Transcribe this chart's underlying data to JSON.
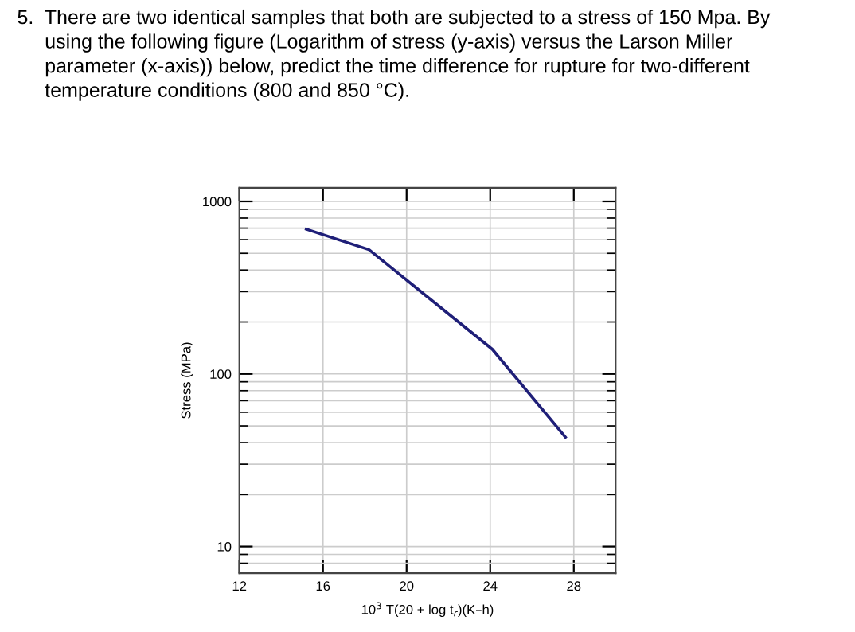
{
  "chart_data": {
    "type": "line",
    "title": "5.  There are two identical samples that both are subjected to a stress of 150 Mpa. By\n     using the following figure (Logarithm of stress (y-axis) versus the Larson Miller\n     parameter (x-axis)) below, predict the time difference for rupture for two-different\n     temperature conditions (800 and 850 °C).",
    "xlabel": "10$^{3}$ T(20 + log t$_{r}$)(K–h)",
    "ylabel": "Stress (MPa)",
    "series": [
      {
        "color": "#1f1f78",
        "x": [
          15.2,
          18.2,
          24.1,
          27.6
        ],
        "values": [
          690,
          525,
          139,
          43
        ]
      }
    ],
    "xlim": [
      12,
      30
    ],
    "xticks": [
      12,
      16,
      20,
      24,
      28
    ],
    "ylim": [
      7,
      1200
    ],
    "yticks": [
      10,
      100,
      1000
    ],
    "log": "y",
    "grid": true,
    "marker": "none",
    "line_style": "solid"
  }
}
